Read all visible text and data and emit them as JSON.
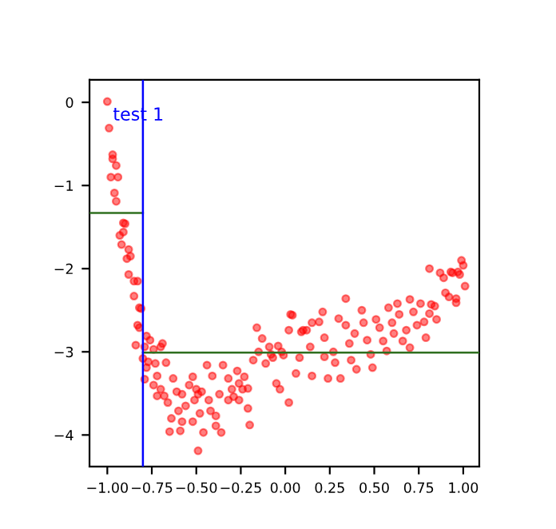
{
  "chart_data": {
    "type": "scatter",
    "annotations": [
      "test 1"
    ],
    "xlim": [
      -1.1,
      1.09
    ],
    "ylim": [
      -4.38,
      0.27
    ],
    "xticks": [
      {
        "value": -1,
        "label": "−1.00"
      },
      {
        "value": -0.75,
        "label": "−0.75"
      },
      {
        "value": -0.5,
        "label": "−0.50"
      },
      {
        "value": -0.25,
        "label": "−0.25"
      },
      {
        "value": 0,
        "label": "0.00"
      },
      {
        "value": 0.25,
        "label": "0.25"
      },
      {
        "value": 0.5,
        "label": "0.50"
      },
      {
        "value": 0.75,
        "label": "0.75"
      },
      {
        "value": 1,
        "label": "1.00"
      }
    ],
    "yticks": [
      0,
      {
        "value": -1,
        "label": "−1"
      },
      {
        "value": -2,
        "label": "−2"
      },
      {
        "value": -3,
        "label": "−3"
      },
      {
        "value": -4,
        "label": "−4"
      }
    ],
    "grid": false,
    "legend": false,
    "ref_lines": [
      {
        "axis": "x",
        "value": -0.8,
        "color": "#0000ff"
      }
    ],
    "series": [
      {
        "marker": "circle",
        "color": "#ff0000",
        "x": [
          -1.0,
          -0.99,
          -0.97,
          -0.97,
          -0.95,
          -0.98,
          -0.94,
          -0.96,
          -0.95,
          -0.91,
          -0.9,
          -0.93,
          -0.91,
          -0.92,
          -0.88,
          -0.87,
          -0.89,
          -0.88,
          -0.85,
          -0.83,
          -0.85,
          -0.82,
          -0.81,
          -0.83,
          -0.82,
          -0.84,
          -0.79,
          -0.78,
          -0.76,
          -0.8,
          -0.77,
          -0.78,
          -0.73,
          -0.74,
          -0.69,
          -0.7,
          -0.67,
          -0.79,
          -0.74,
          -0.72,
          -0.7,
          -0.68,
          -0.72,
          -0.63,
          -0.66,
          -0.61,
          -0.64,
          -0.65,
          -0.6,
          -0.58,
          -0.58,
          -0.59,
          -0.56,
          -0.52,
          -0.54,
          -0.52,
          -0.5,
          -0.49,
          -0.51,
          -0.49,
          -0.47,
          -0.48,
          -0.46,
          -0.44,
          -0.43,
          -0.42,
          -0.41,
          -0.39,
          -0.37,
          -0.39,
          -0.36,
          -0.35,
          -0.32,
          -0.3,
          -0.32,
          -0.29,
          -0.26,
          -0.27,
          -0.26,
          -0.24,
          -0.21,
          -0.21,
          -0.2,
          -0.23,
          -0.18,
          -0.16,
          -0.15,
          -0.13,
          -0.11,
          -0.09,
          -0.07,
          -0.05,
          -0.03,
          -0.04,
          0.02,
          -0.01,
          0.02,
          0.03,
          0.06,
          0.08,
          0.09,
          0.12,
          0.15,
          0.14,
          0.04,
          0.1,
          -0.08,
          -0.02,
          0.15,
          0.21,
          0.19,
          0.22,
          0.22,
          0.24,
          0.27,
          0.28,
          0.3,
          0.31,
          0.34,
          0.34,
          0.36,
          0.37,
          0.39,
          0.4,
          0.43,
          0.44,
          0.46,
          0.48,
          0.49,
          0.51,
          0.53,
          0.55,
          0.57,
          0.58,
          0.6,
          0.61,
          0.63,
          0.64,
          0.66,
          0.68,
          0.7,
          0.7,
          0.72,
          0.74,
          0.76,
          0.78,
          0.79,
          0.81,
          0.82,
          0.84,
          0.85,
          0.81,
          0.89,
          0.9,
          0.92,
          0.93,
          0.94,
          0.96,
          0.96,
          0.97,
          0.99,
          1.0,
          1.01,
          0.98,
          0.87
        ],
        "values": [
          0.01,
          -0.31,
          -0.63,
          -0.68,
          -0.76,
          -0.9,
          -0.9,
          -1.09,
          -1.19,
          -1.45,
          -1.46,
          -1.6,
          -1.56,
          -1.71,
          -1.77,
          -1.85,
          -1.88,
          -2.07,
          -2.15,
          -2.15,
          -2.33,
          -2.47,
          -2.48,
          -2.68,
          -2.71,
          -2.92,
          -2.94,
          -2.81,
          -2.86,
          -3.08,
          -3.12,
          -3.19,
          -3.14,
          -2.97,
          -2.9,
          -2.94,
          -3.13,
          -3.33,
          -3.4,
          -3.29,
          -3.45,
          -3.53,
          -3.53,
          -3.32,
          -3.61,
          -3.48,
          -3.8,
          -3.96,
          -3.71,
          -3.84,
          -3.51,
          -3.95,
          -3.65,
          -3.84,
          -3.4,
          -3.3,
          -3.45,
          -3.51,
          -3.58,
          -4.19,
          -3.48,
          -3.74,
          -3.97,
          -3.16,
          -3.58,
          -3.71,
          -3.29,
          -3.77,
          -3.51,
          -3.89,
          -3.97,
          -3.16,
          -3.32,
          -3.45,
          -3.58,
          -3.54,
          -3.58,
          -3.23,
          -3.38,
          -3.45,
          -3.44,
          -3.68,
          -3.88,
          -3.3,
          -3.1,
          -2.71,
          -3.0,
          -2.84,
          -3.14,
          -2.94,
          -3.07,
          -3.38,
          -3.45,
          -2.93,
          -3.61,
          -3.04,
          -2.74,
          -2.55,
          -3.26,
          -3.07,
          -2.76,
          -2.74,
          -2.65,
          -2.94,
          -2.56,
          -2.74,
          -3.03,
          -3.0,
          -3.29,
          -2.52,
          -2.64,
          -2.83,
          -3.06,
          -3.32,
          -3.0,
          -3.13,
          -2.6,
          -3.32,
          -2.36,
          -2.68,
          -2.9,
          -3.1,
          -2.78,
          -3.21,
          -2.5,
          -2.65,
          -2.86,
          -3.03,
          -3.19,
          -2.61,
          -2.71,
          -2.87,
          -2.99,
          -2.47,
          -2.65,
          -2.78,
          -2.42,
          -2.55,
          -2.87,
          -2.74,
          -2.95,
          -2.37,
          -2.52,
          -2.68,
          -2.42,
          -2.64,
          -2.83,
          -2.54,
          -2.43,
          -2.45,
          -2.61,
          -2.0,
          -2.11,
          -2.29,
          -2.34,
          -2.04,
          -2.05,
          -2.36,
          -2.41,
          -2.04,
          -1.9,
          -1.96,
          -2.21,
          -2.07,
          -2.05
        ]
      },
      {
        "type": "line",
        "color": "#2f6f1f",
        "x": [
          -1.1,
          -0.8
        ],
        "values": [
          -1.33,
          -1.33
        ]
      },
      {
        "type": "line",
        "color": "#2f6f1f",
        "x": [
          -0.8,
          1.09
        ],
        "values": [
          -3.01,
          -3.01
        ]
      }
    ]
  }
}
